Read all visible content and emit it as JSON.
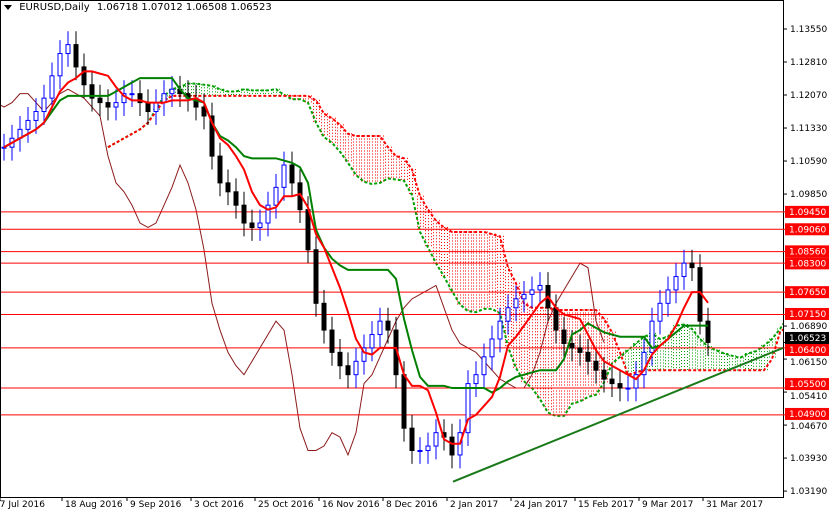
{
  "header": {
    "symbol": "EURUSD,Daily",
    "ohlc": "1.06718 1.07012 1.06508 1.06523"
  },
  "chart_data": {
    "type": "candlestick",
    "title": "EURUSD,Daily",
    "indicator": "Ichimoku",
    "ylim": [
      1.0304,
      1.1425
    ],
    "y_ticks": [
      "1.13550",
      "1.12810",
      "1.12070",
      "1.11330",
      "1.10590",
      "1.09850",
      "1.06890",
      "1.06150",
      "1.05410",
      "1.04670",
      "1.03930",
      "1.03190"
    ],
    "x_ticks": [
      "27 Jul 2016",
      "18 Aug 2016",
      "9 Sep 2016",
      "3 Oct 2016",
      "25 Oct 2016",
      "16 Nov 2016",
      "8 Dec 2016",
      "2 Jan 2017",
      "24 Jan 2017",
      "15 Feb 2017",
      "9 Mar 2017",
      "31 Mar 2017"
    ],
    "closes": [
      1.109,
      1.111,
      1.113,
      1.115,
      1.117,
      1.12,
      1.125,
      1.13,
      1.132,
      1.127,
      1.123,
      1.12,
      1.119,
      1.118,
      1.119,
      1.121,
      1.121,
      1.119,
      1.117,
      1.119,
      1.121,
      1.122,
      1.121,
      1.12,
      1.118,
      1.116,
      1.107,
      1.101,
      1.099,
      1.096,
      1.092,
      1.091,
      1.092,
      1.096,
      1.1,
      1.105,
      1.101,
      1.095,
      1.086,
      1.074,
      1.068,
      1.063,
      1.06,
      1.058,
      1.061,
      1.064,
      1.067,
      1.07,
      1.068,
      1.058,
      1.046,
      1.041,
      1.041,
      1.042,
      1.045,
      1.044,
      1.04,
      1.045,
      1.056,
      1.058,
      1.062,
      1.066,
      1.07,
      1.073,
      1.075,
      1.076,
      1.077,
      1.078,
      1.073,
      1.068,
      1.065,
      1.064,
      1.063,
      1.061,
      1.059,
      1.057,
      1.056,
      1.055,
      1.055,
      1.058,
      1.063,
      1.07,
      1.074,
      1.077,
      1.08,
      1.083,
      1.082,
      1.07,
      1.06523
    ],
    "current_price": "1.06523",
    "levels": [
      "1.09450",
      "1.09060",
      "1.08560",
      "1.08300",
      "1.07650",
      "1.07150",
      "1.06400",
      "1.05500",
      "1.04900"
    ],
    "trendline": {
      "from": [
        "2 Jan 2017",
        1.034
      ],
      "to": [
        "right edge",
        1.064
      ]
    },
    "colors": {
      "bull": "#0000ff",
      "bear": "#000000",
      "tenkan": "#ff0000",
      "kijun": "#008000",
      "chikou": "#8b1a1a",
      "cloud_up": "#00a000",
      "cloud_down": "#ff0000",
      "level": "#ff0000",
      "trend": "#1a7a1a"
    }
  }
}
